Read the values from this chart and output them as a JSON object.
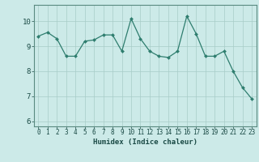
{
  "x": [
    0,
    1,
    2,
    3,
    4,
    5,
    6,
    7,
    8,
    9,
    10,
    11,
    12,
    13,
    14,
    15,
    16,
    17,
    18,
    19,
    20,
    21,
    22,
    23
  ],
  "y": [
    9.4,
    9.55,
    9.3,
    8.6,
    8.6,
    9.2,
    9.25,
    9.45,
    9.45,
    8.8,
    10.1,
    9.3,
    8.8,
    8.6,
    8.55,
    8.8,
    10.2,
    9.5,
    8.6,
    8.6,
    8.8,
    8.0,
    7.35,
    6.9
  ],
  "xlim": [
    -0.5,
    23.5
  ],
  "ylim": [
    5.8,
    10.65
  ],
  "yticks": [
    6,
    7,
    8,
    9,
    10
  ],
  "xticks": [
    0,
    1,
    2,
    3,
    4,
    5,
    6,
    7,
    8,
    9,
    10,
    11,
    12,
    13,
    14,
    15,
    16,
    17,
    18,
    19,
    20,
    21,
    22,
    23
  ],
  "xlabel": "Humidex (Indice chaleur)",
  "line_color": "#2e7d6e",
  "marker_color": "#2e7d6e",
  "bg_color": "#cceae8",
  "grid_color": "#a8ccc8",
  "axes_color": "#5a8a80",
  "tick_color": "#1a4a45",
  "label_fontsize": 6.5,
  "tick_fontsize": 5.5
}
